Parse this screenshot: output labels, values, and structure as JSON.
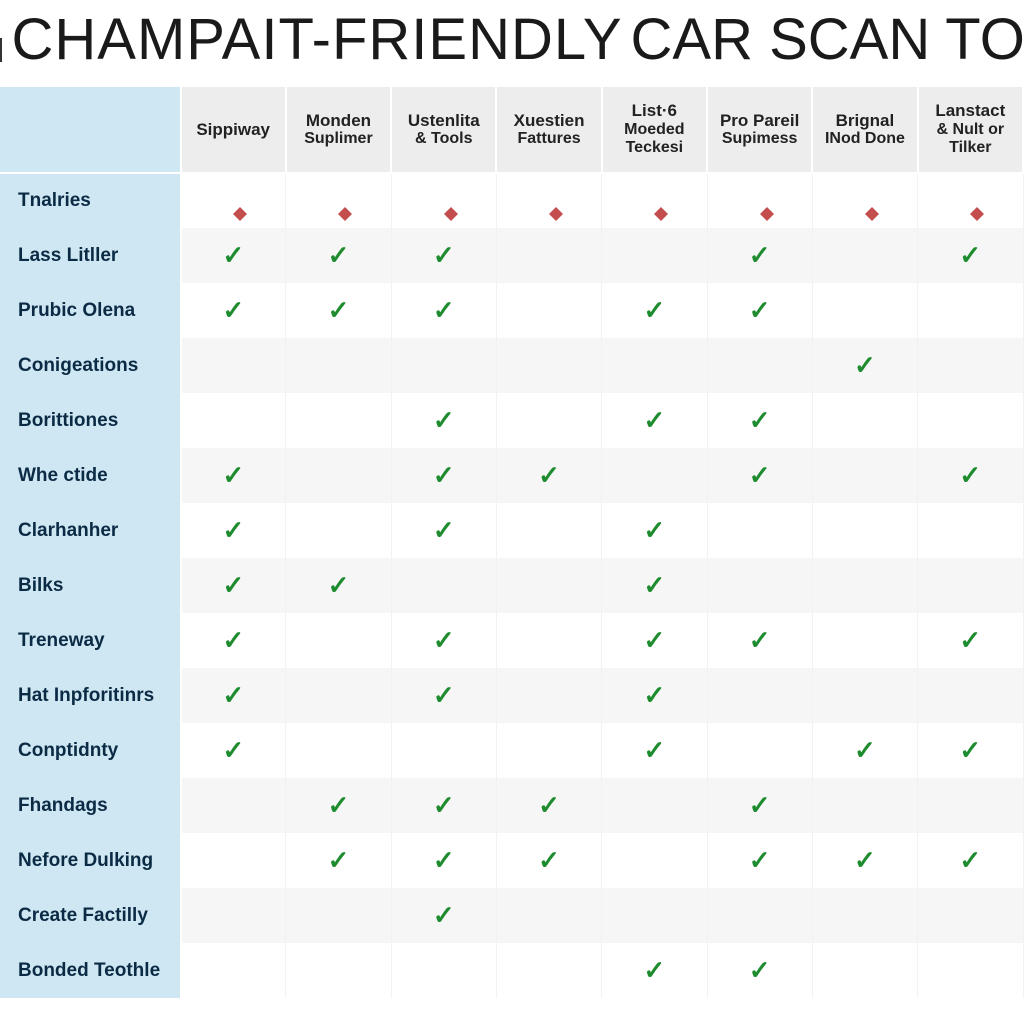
{
  "title": {
    "left": "KE",
    "mid": "CHAMPAIT-FRIENDLY",
    "right": "CAR SCAN TOOLS",
    "color": "#1a1a1a",
    "fontsize": 58
  },
  "logo": {
    "bar_colors": [
      "#b02a2a",
      "#333333",
      "#b02a2a",
      "#333333"
    ]
  },
  "table": {
    "type": "table",
    "check_color": "#1e8c2e",
    "dot_color": "#c44d4d",
    "header_bg": "#ededed",
    "rowhead_bg": "#cfe7f3",
    "stripe_odd": "#ffffff",
    "stripe_even": "#f6f6f6",
    "columns": [
      {
        "line1": "Sippiway",
        "line2": ""
      },
      {
        "line1": "Monden",
        "line2": "Suplimer"
      },
      {
        "line1": "Ustenlita",
        "line2": "& Tools"
      },
      {
        "line1": "Xuestien",
        "line2": "Fattures"
      },
      {
        "line1": "List·6",
        "line2": "Moeded Teckesi"
      },
      {
        "line1": "Pro Pareil",
        "line2": "Supimess"
      },
      {
        "line1": "Brignal",
        "line2": "INod Done"
      },
      {
        "line1": "Lanstact",
        "line2": "& Nult or Tilker"
      }
    ],
    "rows": [
      {
        "label": "Tnalries",
        "cells": [
          "dot",
          "dot",
          "dot",
          "dot",
          "dot",
          "dot",
          "dot",
          "dot"
        ]
      },
      {
        "label": "Lass Litller",
        "cells": [
          "check",
          "check",
          "check",
          "",
          "",
          "check",
          "",
          "check"
        ]
      },
      {
        "label": "Prubic Olena",
        "cells": [
          "check",
          "check",
          "check",
          "",
          "check",
          "check",
          "",
          ""
        ]
      },
      {
        "label": "Conigeations",
        "cells": [
          "",
          "",
          "",
          "",
          "",
          "",
          "check",
          ""
        ]
      },
      {
        "label": "Borittiones",
        "cells": [
          "",
          "",
          "check",
          "",
          "check",
          "check",
          "",
          ""
        ]
      },
      {
        "label": "Whe ctide",
        "cells": [
          "check",
          "",
          "check",
          "check",
          "",
          "check",
          "",
          "check"
        ]
      },
      {
        "label": "Clarhanher",
        "cells": [
          "check",
          "",
          "check",
          "",
          "check",
          "",
          "",
          ""
        ]
      },
      {
        "label": "Bilks",
        "cells": [
          "check",
          "check",
          "",
          "",
          "check",
          "",
          "",
          ""
        ]
      },
      {
        "label": "Treneway",
        "cells": [
          "check",
          "",
          "check",
          "",
          "check",
          "check",
          "",
          "check"
        ]
      },
      {
        "label": "Hat Inpforitinrs",
        "cells": [
          "check",
          "",
          "check",
          "",
          "check",
          "",
          "",
          ""
        ]
      },
      {
        "label": "Conptidnty",
        "cells": [
          "check",
          "",
          "",
          "",
          "check",
          "",
          "check",
          "check"
        ]
      },
      {
        "label": "Fhandags",
        "cells": [
          "",
          "check",
          "check",
          "check",
          "",
          "check",
          "",
          ""
        ]
      },
      {
        "label": "Nefore Dulking",
        "cells": [
          "",
          "check",
          "check",
          "check",
          "",
          "check",
          "check",
          "check"
        ]
      },
      {
        "label": "Create Factilly",
        "cells": [
          "",
          "",
          "check",
          "",
          "",
          "",
          "",
          ""
        ]
      },
      {
        "label": "Bonded Teothle",
        "cells": [
          "",
          "",
          "",
          "",
          "check",
          "check",
          "",
          ""
        ]
      }
    ]
  }
}
